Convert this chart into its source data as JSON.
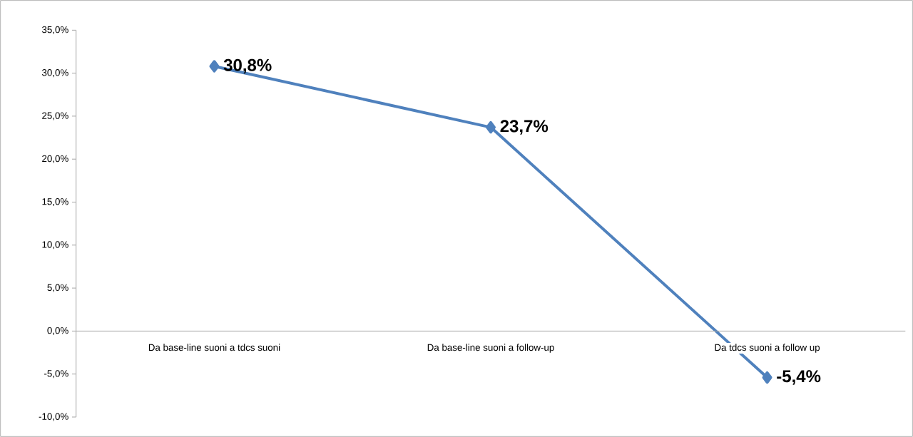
{
  "chart_data": {
    "type": "line",
    "categories": [
      "Da base-line suoni a tdcs suoni",
      "Da base-line suoni a follow-up",
      "Da tdcs suoni  a follow up"
    ],
    "series": [
      {
        "color": "#4f81bd",
        "values": [
          30.8,
          23.7,
          -5.4
        ],
        "value_labels": [
          "30,8%",
          "23,7%",
          "-5,4%"
        ]
      }
    ],
    "marker": "diamond",
    "ylim": [
      -10,
      35
    ],
    "yticks": [
      {
        "value": -10,
        "label": "-10,0%"
      },
      {
        "value": -5,
        "label": "-5,0%"
      },
      {
        "value": 0,
        "label": "0,0%"
      },
      {
        "value": 5,
        "label": "5,0%"
      },
      {
        "value": 10,
        "label": "10,0%"
      },
      {
        "value": 15,
        "label": "15,0%"
      },
      {
        "value": 20,
        "label": "20,0%"
      },
      {
        "value": 25,
        "label": "25,0%"
      },
      {
        "value": 30,
        "label": "30,0%"
      },
      {
        "value": 35,
        "label": "35,0%"
      }
    ]
  }
}
